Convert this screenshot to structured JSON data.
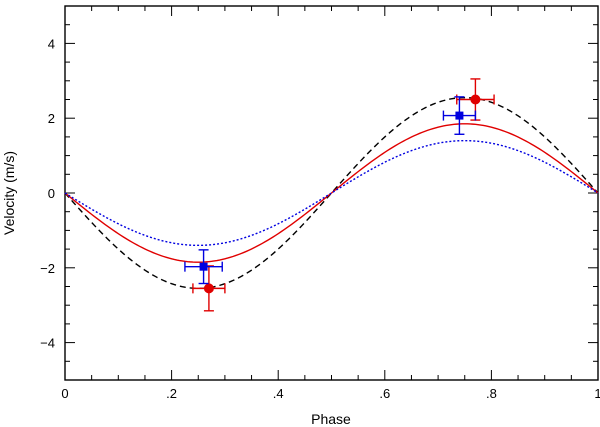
{
  "chart_data": {
    "type": "scatter",
    "title": "",
    "xlabel": "Phase",
    "ylabel": "Velocity (m/s)",
    "xlim": [
      0,
      1
    ],
    "ylim": [
      -5,
      5
    ],
    "xticks": [
      {
        "value": 0,
        "label": "0"
      },
      {
        "value": 0.2,
        "label": ".2"
      },
      {
        "value": 0.4,
        "label": ".4"
      },
      {
        "value": 0.6,
        "label": ".6"
      },
      {
        "value": 0.8,
        "label": ".8"
      },
      {
        "value": 1,
        "label": "1"
      }
    ],
    "yticks": [
      {
        "value": -4,
        "label": "−4"
      },
      {
        "value": -2,
        "label": "−2"
      },
      {
        "value": 0,
        "label": "0"
      },
      {
        "value": 2,
        "label": "2"
      },
      {
        "value": 4,
        "label": "4"
      }
    ],
    "xminor_step": 0.05,
    "yminor_step": 0.5,
    "curves": [
      {
        "name": "black-dashed-model",
        "amplitude": 2.55,
        "color": "#000000",
        "style": "dashed"
      },
      {
        "name": "red-solid-model",
        "amplitude": 1.85,
        "color": "#e00000",
        "style": "solid"
      },
      {
        "name": "blue-dotted-model",
        "amplitude": 1.4,
        "color": "#0000e0",
        "style": "dotted"
      }
    ],
    "series": [
      {
        "name": "red-points",
        "color": "#e00000",
        "marker": "circle",
        "points": [
          {
            "x": 0.27,
            "y": -2.55,
            "xerr": 0.03,
            "yerr": 0.6
          },
          {
            "x": 0.77,
            "y": 2.5,
            "xerr": 0.035,
            "yerr": 0.55
          }
        ]
      },
      {
        "name": "blue-points",
        "color": "#0000e0",
        "marker": "square",
        "points": [
          {
            "x": 0.26,
            "y": -1.97,
            "xerr": 0.035,
            "yerr": 0.45
          },
          {
            "x": 0.74,
            "y": 2.07,
            "xerr": 0.03,
            "yerr": 0.5
          }
        ]
      }
    ]
  }
}
